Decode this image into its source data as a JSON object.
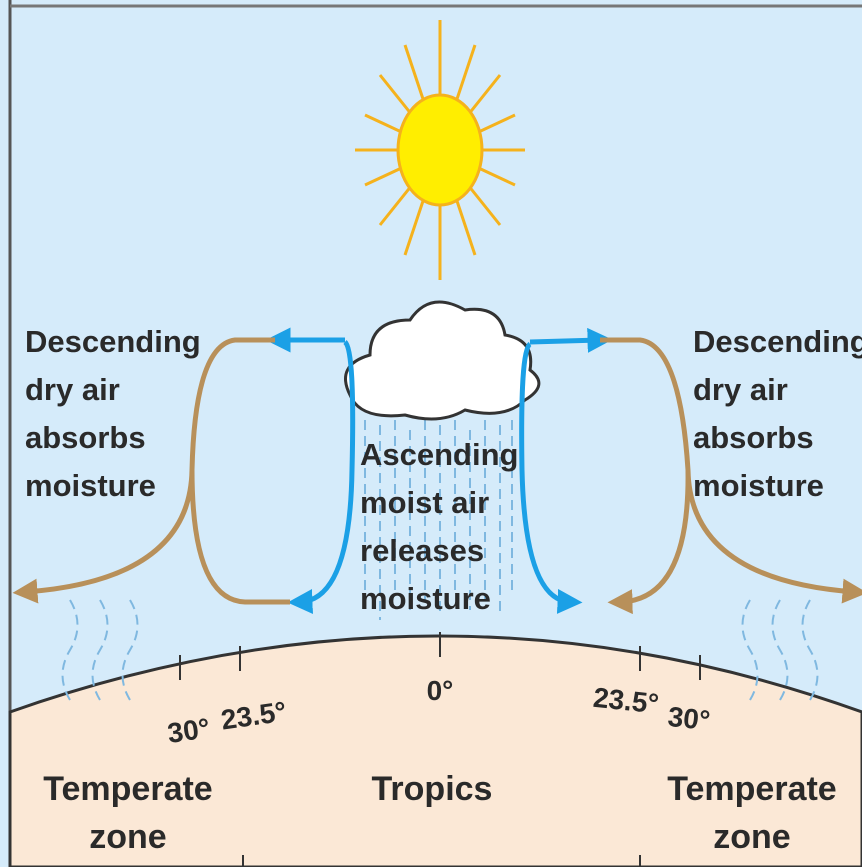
{
  "labels": {
    "left_descending": [
      "Descending",
      "dry air",
      "absorbs",
      "moisture"
    ],
    "center_ascending": [
      "Ascending",
      "moist air",
      "releases",
      "moisture"
    ],
    "right_descending": [
      "Descending",
      "dry air",
      "absorbs",
      "moisture"
    ]
  },
  "latitudes": [
    "30°",
    "23.5°",
    "0°",
    "23.5°",
    "30°"
  ],
  "zones": [
    {
      "lines": [
        "Temperate",
        "zone"
      ]
    },
    {
      "lines": [
        "Tropics"
      ]
    },
    {
      "lines": [
        "Temperate",
        "zone"
      ]
    }
  ]
}
